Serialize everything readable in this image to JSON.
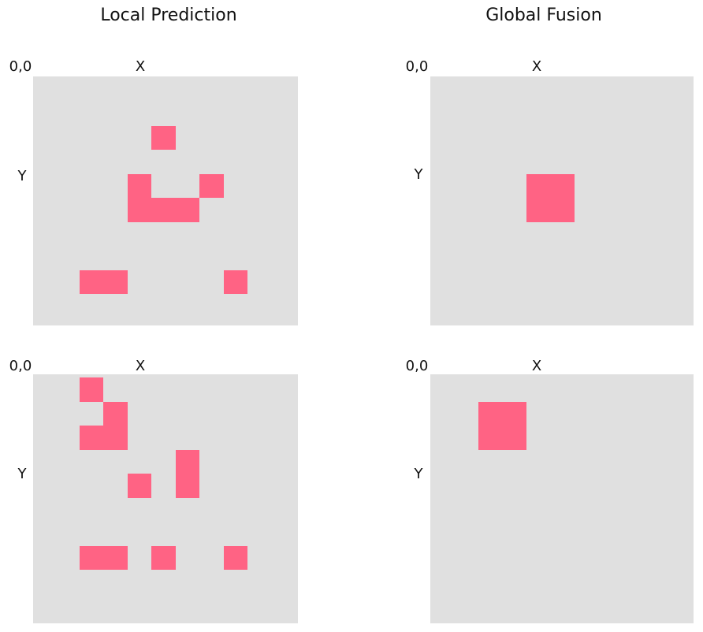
{
  "columns": [
    {
      "title": "Local Prediction"
    },
    {
      "title": "Global Fusion"
    }
  ],
  "axis_labels": {
    "origin": "0,0",
    "x": "X",
    "y": "Y"
  },
  "colors": {
    "grid_background": "#e0e0e0",
    "occupied_cell": "#ff6384"
  },
  "grid_size": 11,
  "panels": [
    {
      "id": "local-prediction-1",
      "cells": [
        [
          4,
          1
        ],
        [
          3,
          3
        ],
        [
          6,
          3
        ],
        [
          3,
          4
        ],
        [
          4,
          4
        ],
        [
          5,
          4
        ],
        [
          1,
          7
        ],
        [
          2,
          7
        ],
        [
          7,
          7
        ]
      ]
    },
    {
      "id": "global-fusion-1",
      "cells": [
        [
          3,
          3
        ],
        [
          4,
          3
        ],
        [
          3,
          4
        ],
        [
          4,
          4
        ]
      ]
    },
    {
      "id": "local-prediction-2",
      "cells": [
        [
          1,
          0
        ],
        [
          2,
          1
        ],
        [
          1,
          2
        ],
        [
          2,
          2
        ],
        [
          5,
          3
        ],
        [
          3,
          4
        ],
        [
          5,
          4
        ],
        [
          1,
          7
        ],
        [
          2,
          7
        ],
        [
          4,
          7
        ],
        [
          7,
          7
        ]
      ]
    },
    {
      "id": "global-fusion-2",
      "cells": [
        [
          1,
          1
        ],
        [
          2,
          1
        ],
        [
          1,
          2
        ],
        [
          2,
          2
        ]
      ]
    }
  ]
}
